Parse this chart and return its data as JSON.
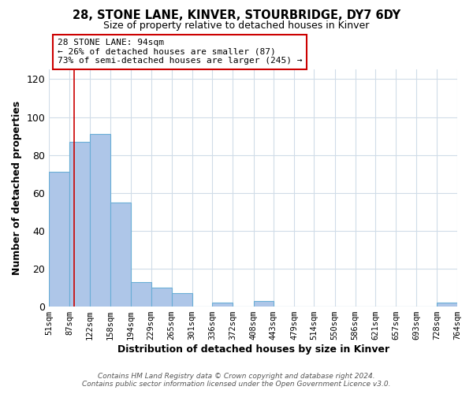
{
  "title": "28, STONE LANE, KINVER, STOURBRIDGE, DY7 6DY",
  "subtitle": "Size of property relative to detached houses in Kinver",
  "xlabel": "Distribution of detached houses by size in Kinver",
  "ylabel": "Number of detached properties",
  "bin_edges": [
    51,
    87,
    122,
    158,
    194,
    229,
    265,
    301,
    336,
    372,
    408,
    443,
    479,
    514,
    550,
    586,
    621,
    657,
    693,
    728,
    764
  ],
  "bin_labels": [
    "51sqm",
    "87sqm",
    "122sqm",
    "158sqm",
    "194sqm",
    "229sqm",
    "265sqm",
    "301sqm",
    "336sqm",
    "372sqm",
    "408sqm",
    "443sqm",
    "479sqm",
    "514sqm",
    "550sqm",
    "586sqm",
    "621sqm",
    "657sqm",
    "693sqm",
    "728sqm",
    "764sqm"
  ],
  "bar_heights": [
    71,
    87,
    91,
    55,
    13,
    10,
    7,
    0,
    2,
    0,
    3,
    0,
    0,
    0,
    0,
    0,
    0,
    0,
    0,
    2
  ],
  "bar_color": "#aec6e8",
  "bar_edgecolor": "#6aaed6",
  "ylim": [
    0,
    125
  ],
  "yticks": [
    0,
    20,
    40,
    60,
    80,
    100,
    120
  ],
  "property_line_x": 94,
  "property_line_color": "#cc0000",
  "annotation_line1": "28 STONE LANE: 94sqm",
  "annotation_line2": "← 26% of detached houses are smaller (87)",
  "annotation_line3": "73% of semi-detached houses are larger (245) →",
  "annotation_box_color": "#ffffff",
  "annotation_box_edgecolor": "#cc0000",
  "footer_line1": "Contains HM Land Registry data © Crown copyright and database right 2024.",
  "footer_line2": "Contains public sector information licensed under the Open Government Licence v3.0.",
  "background_color": "#ffffff",
  "grid_color": "#d0dce8"
}
